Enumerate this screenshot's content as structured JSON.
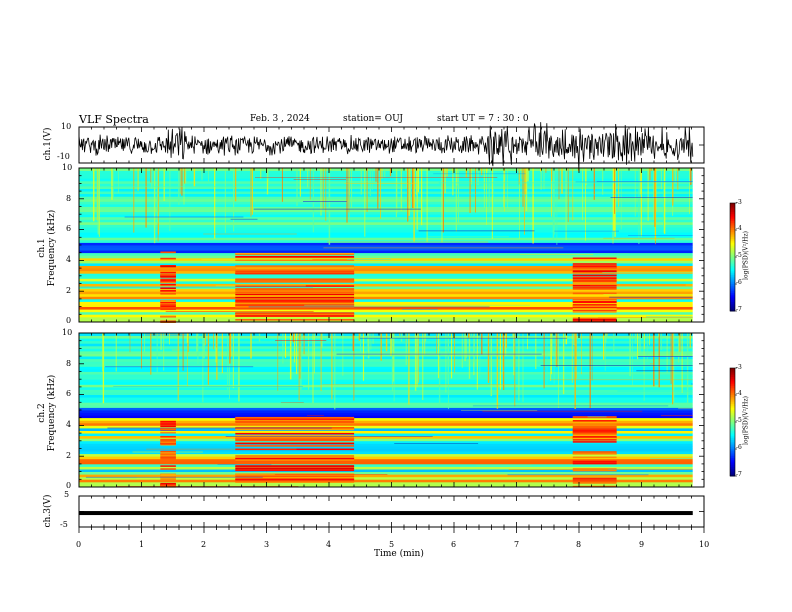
{
  "header": {
    "title": "VLF Spectra",
    "date": "Feb. 3  , 2024",
    "station": "station= OUJ",
    "start": "start  UT  =   7  : 30 : 0"
  },
  "chart_data": [
    {
      "type": "line",
      "panel": "ch1-waveform",
      "ylabel": "ch.1(V)",
      "ylim": [
        -10,
        10
      ],
      "yticks": [
        "10",
        "-10"
      ],
      "xlim": [
        0,
        10
      ]
    },
    {
      "type": "heatmap",
      "panel": "ch1-spectrogram",
      "ylabel_line1": "ch.1",
      "ylabel_line2": "Frequency  (kHz)",
      "ylim": [
        0,
        10
      ],
      "yticks": [
        "0",
        "2",
        "4",
        "6",
        "8",
        "10"
      ],
      "xlim": [
        0,
        10
      ],
      "colorbar": {
        "label": "log(PSD)(V²/Hz)",
        "range": [
          -7,
          -3
        ],
        "ticks": [
          "-3",
          "-4",
          "-5",
          "-6",
          "-7"
        ]
      }
    },
    {
      "type": "heatmap",
      "panel": "ch2-spectrogram",
      "ylabel_line1": "ch.2",
      "ylabel_line2": "Frequency  (kHz)",
      "ylim": [
        0,
        10
      ],
      "yticks": [
        "0",
        "2",
        "4",
        "6",
        "8",
        "10"
      ],
      "xlim": [
        0,
        10
      ],
      "colorbar": {
        "label": "log(PSD)(V²/Hz)",
        "range": [
          -7,
          -3
        ],
        "ticks": [
          "-3",
          "-4",
          "-5",
          "-6",
          "-7"
        ]
      }
    },
    {
      "type": "line",
      "panel": "ch3-waveform",
      "ylabel": "ch.3(V)",
      "ylim": [
        -5,
        5
      ],
      "yticks": [
        "5",
        "-5"
      ],
      "xlim": [
        0,
        10
      ]
    }
  ],
  "xaxis": {
    "label": "Time  (min)",
    "ticks": [
      "0",
      "1",
      "2",
      "3",
      "4",
      "5",
      "6",
      "7",
      "8",
      "9",
      "10"
    ]
  }
}
